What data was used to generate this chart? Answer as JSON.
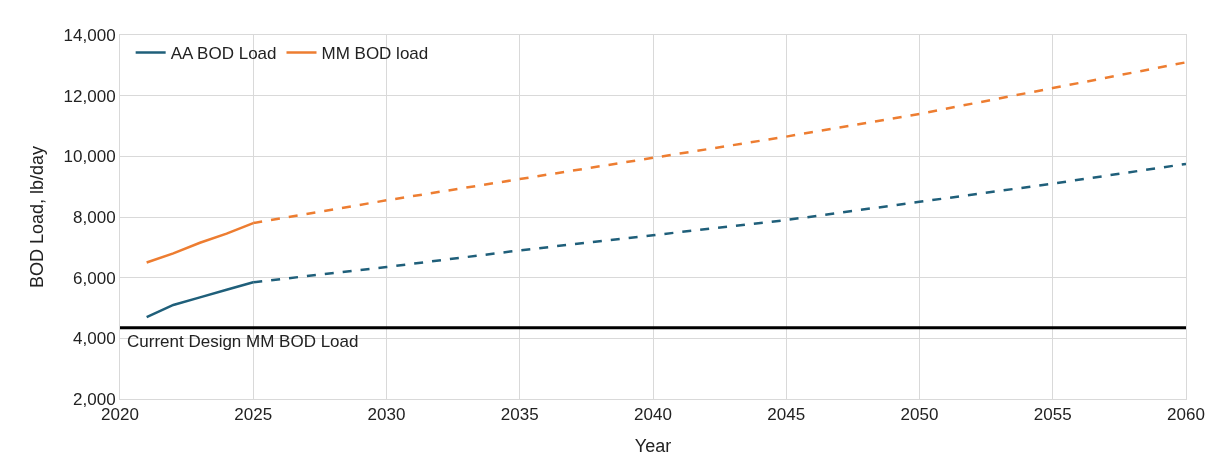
{
  "chart_data": {
    "type": "line",
    "xlabel": "Year",
    "ylabel": "BOD Load, lb/day",
    "xlim": [
      2020,
      2060
    ],
    "xticks": [
      2020,
      2025,
      2030,
      2035,
      2040,
      2045,
      2050,
      2055,
      2060
    ],
    "ylim": [
      2000,
      14000
    ],
    "yticks": [
      {
        "value": 2000,
        "label": "2,000"
      },
      {
        "value": 4000,
        "label": "4,000"
      },
      {
        "value": 6000,
        "label": "6,000"
      },
      {
        "value": 8000,
        "label": "8,000"
      },
      {
        "value": 10000,
        "label": "10,000"
      },
      {
        "value": 12000,
        "label": "12,000"
      },
      {
        "value": 14000,
        "label": "14,000"
      }
    ],
    "grid": true,
    "legend": "top left",
    "marker": "none",
    "series": [
      {
        "name": "AA BOD Load",
        "color": "#1f5f7a",
        "line_style": "solid",
        "x": [
          2021,
          2022,
          2023,
          2024,
          2025
        ],
        "values": [
          4700,
          5100,
          5350,
          5600,
          5850
        ]
      },
      {
        "name": "MM BOD load",
        "color": "#ed7d31",
        "line_style": "solid",
        "x": [
          2021,
          2022,
          2023,
          2024,
          2025
        ],
        "values": [
          6500,
          6800,
          7150,
          7450,
          7800
        ]
      },
      {
        "color": "#1f5f7a",
        "line_style": "dashed",
        "x": [
          2025,
          2030,
          2035,
          2040,
          2045,
          2050,
          2055,
          2060
        ],
        "values": [
          5850,
          6350,
          6900,
          7400,
          7900,
          8500,
          9100,
          9750
        ]
      },
      {
        "color": "#ed7d31",
        "line_style": "dashed",
        "x": [
          2025,
          2030,
          2035,
          2040,
          2045,
          2050,
          2055,
          2060
        ],
        "values": [
          7800,
          8550,
          9250,
          9950,
          10650,
          11400,
          12250,
          13100
        ]
      }
    ],
    "ref_lines": [
      {
        "axis": "y",
        "value": 4350,
        "label": "Current Design MM BOD Load",
        "color": "#000000",
        "line_style": "solid"
      }
    ]
  }
}
